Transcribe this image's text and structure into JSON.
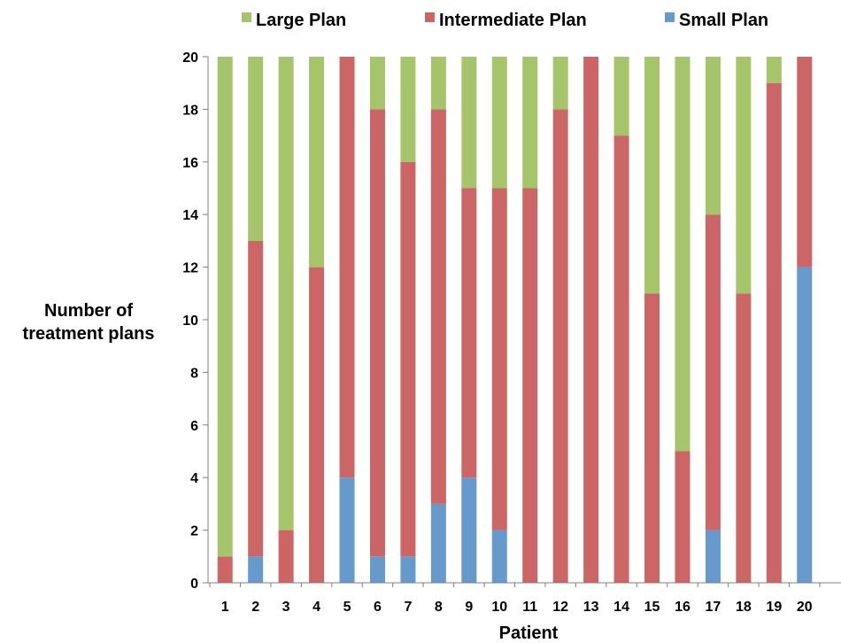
{
  "chart_data": {
    "type": "bar",
    "stacked": true,
    "categories": [
      "1",
      "2",
      "3",
      "4",
      "5",
      "6",
      "7",
      "8",
      "9",
      "10",
      "11",
      "12",
      "13",
      "14",
      "15",
      "16",
      "17",
      "18",
      "19",
      "20"
    ],
    "series": [
      {
        "name": "Small Plan",
        "color": "#6699cc",
        "values": [
          0,
          1,
          0,
          0,
          4,
          1,
          1,
          3,
          4,
          2,
          0,
          0,
          0,
          0,
          0,
          0,
          2,
          0,
          0,
          12
        ]
      },
      {
        "name": "Intermediate Plan",
        "color": "#cc6666",
        "values": [
          1,
          12,
          2,
          12,
          16,
          17,
          15,
          15,
          11,
          13,
          15,
          18,
          20,
          17,
          11,
          5,
          12,
          11,
          19,
          8
        ]
      },
      {
        "name": "Large Plan",
        "color": "#a6c46a",
        "values": [
          19,
          7,
          18,
          8,
          0,
          2,
          4,
          2,
          5,
          5,
          5,
          2,
          0,
          3,
          9,
          15,
          6,
          9,
          1,
          0
        ]
      }
    ],
    "legend_order": [
      "Large Plan",
      "Intermediate Plan",
      "Small Plan"
    ],
    "legend_position": "top",
    "xlabel": "Patient",
    "ylabel_lines": [
      "Number of",
      "treatment plans"
    ],
    "ylim": [
      0,
      20
    ],
    "yticks": [
      "0",
      "2",
      "4",
      "6",
      "8",
      "10",
      "12",
      "14",
      "16",
      "18",
      "20"
    ],
    "grid": false
  }
}
